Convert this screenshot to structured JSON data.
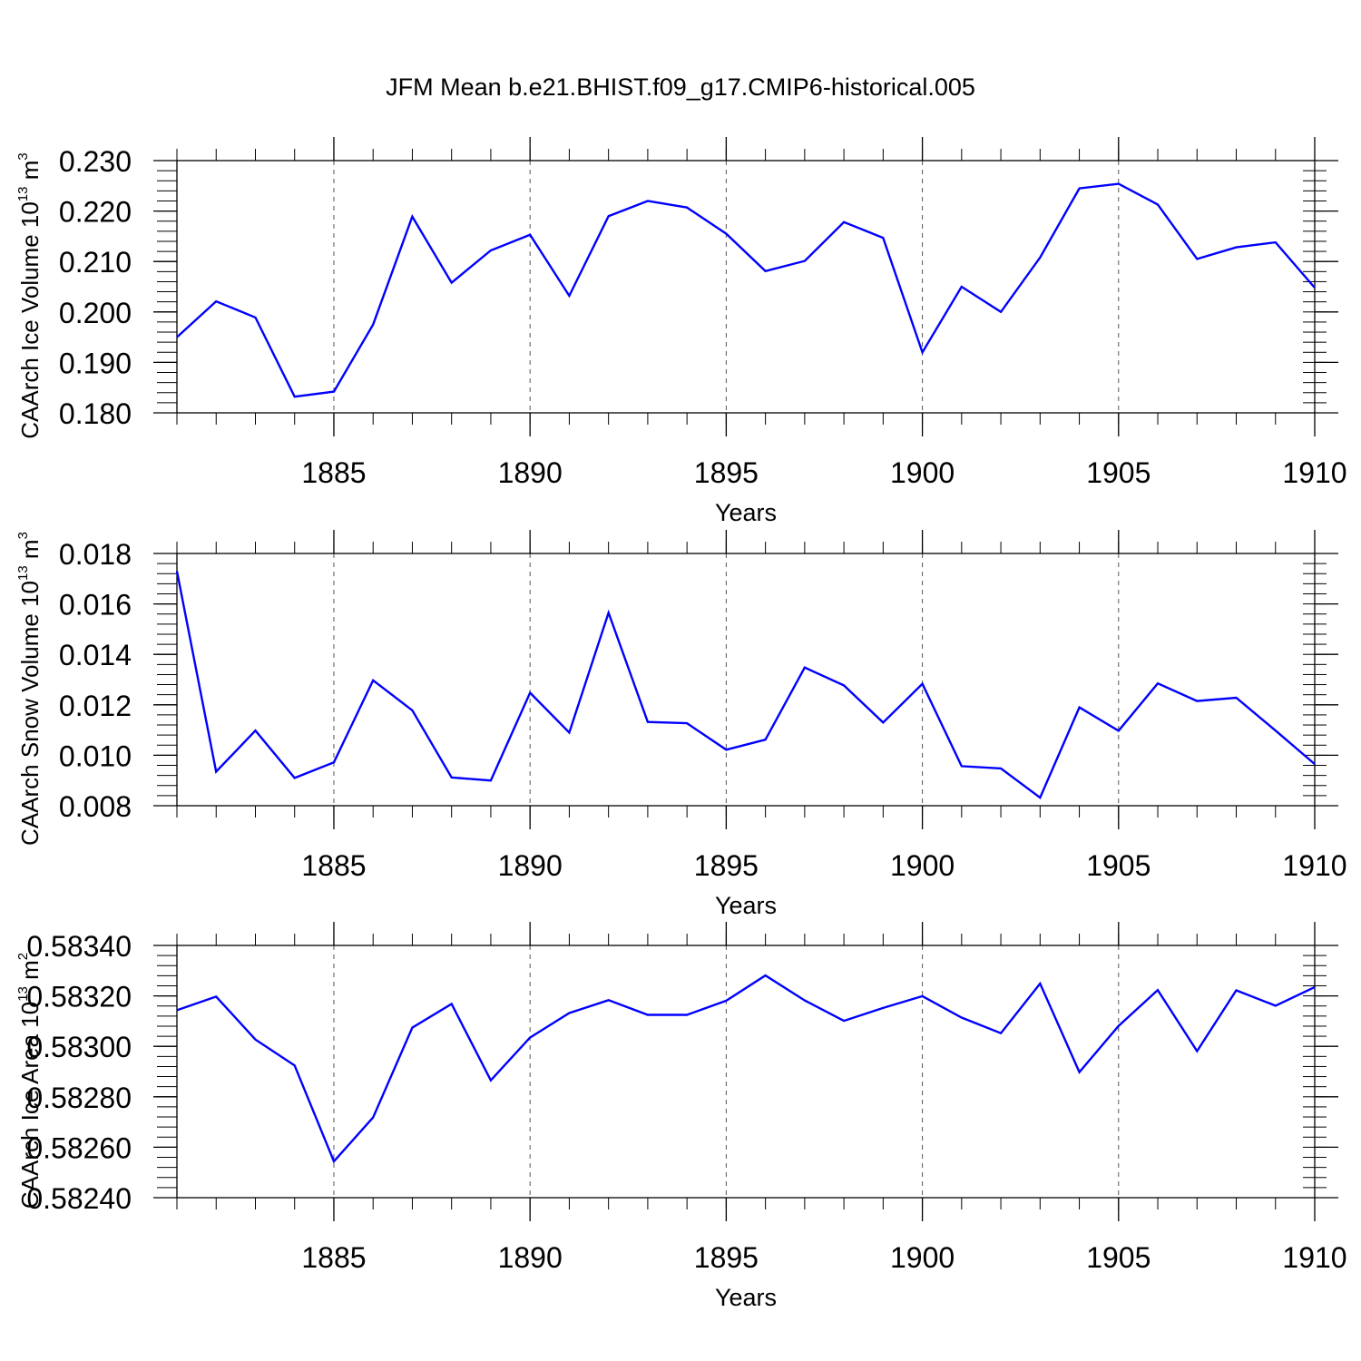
{
  "title": "JFM Mean b.e21.BHIST.f09_g17.CMIP6-historical.005",
  "colors": {
    "line": "#0000ff",
    "axis": "#000000",
    "grid": "#555555"
  },
  "chart_data": [
    {
      "type": "line",
      "ylabel": "CAArch Ice Volume",
      "ylabel_exp_base": "10",
      "ylabel_exp": "13",
      "ylabel_unit_base": "m",
      "ylabel_unit_exp": "3",
      "xlabel": "Years",
      "xlim": [
        1881,
        1910
      ],
      "ylim": [
        0.18,
        0.23
      ],
      "xticks": [
        1885,
        1890,
        1895,
        1900,
        1905,
        1910
      ],
      "yticks": [
        0.18,
        0.19,
        0.2,
        0.21,
        0.22,
        0.23
      ],
      "ytick_labels": [
        "0.180",
        "0.190",
        "0.200",
        "0.210",
        "0.220",
        "0.230"
      ],
      "grid_x": [
        1885,
        1890,
        1895,
        1900,
        1905
      ],
      "x": [
        1881,
        1882,
        1883,
        1884,
        1885,
        1886,
        1887,
        1888,
        1889,
        1890,
        1891,
        1892,
        1893,
        1894,
        1895,
        1896,
        1897,
        1898,
        1899,
        1900,
        1901,
        1902,
        1903,
        1904,
        1905,
        1906,
        1907,
        1908,
        1909,
        1910
      ],
      "values": [
        0.195,
        0.2021,
        0.1989,
        0.1832,
        0.1842,
        0.1975,
        0.2189,
        0.2058,
        0.2122,
        0.2153,
        0.2032,
        0.219,
        0.222,
        0.2207,
        0.2155,
        0.2081,
        0.2101,
        0.2178,
        0.2147,
        0.192,
        0.205,
        0.2,
        0.2108,
        0.2245,
        0.2254,
        0.2213,
        0.2105,
        0.2128,
        0.2138,
        0.2048
      ]
    },
    {
      "type": "line",
      "ylabel": "CAArch Snow Volume",
      "ylabel_exp_base": "10",
      "ylabel_exp": "13",
      "ylabel_unit_base": "m",
      "ylabel_unit_exp": "3",
      "xlabel": "Years",
      "xlim": [
        1881,
        1910
      ],
      "ylim": [
        0.008,
        0.018
      ],
      "xticks": [
        1885,
        1890,
        1895,
        1900,
        1905,
        1910
      ],
      "yticks": [
        0.008,
        0.01,
        0.012,
        0.014,
        0.016,
        0.018
      ],
      "ytick_labels": [
        "0.008",
        "0.010",
        "0.012",
        "0.014",
        "0.016",
        "0.018"
      ],
      "grid_x": [
        1885,
        1890,
        1895,
        1900,
        1905
      ],
      "x": [
        1881,
        1882,
        1883,
        1884,
        1885,
        1886,
        1887,
        1888,
        1889,
        1890,
        1891,
        1892,
        1893,
        1894,
        1895,
        1896,
        1897,
        1898,
        1899,
        1900,
        1901,
        1902,
        1903,
        1904,
        1905,
        1906,
        1907,
        1908,
        1909,
        1910
      ],
      "values": [
        0.0173,
        0.00935,
        0.01098,
        0.0091,
        0.00972,
        0.01297,
        0.01178,
        0.00912,
        0.009,
        0.01248,
        0.0109,
        0.01565,
        0.01132,
        0.01127,
        0.01022,
        0.01062,
        0.01348,
        0.01277,
        0.0113,
        0.01283,
        0.00957,
        0.00948,
        0.00832,
        0.0119,
        0.01097,
        0.01285,
        0.01215,
        0.01228,
        0.01098,
        0.00965
      ]
    },
    {
      "type": "line",
      "ylabel": "CAArch Ice Area",
      "ylabel_exp_base": "10",
      "ylabel_exp": "13",
      "ylabel_unit_base": "m",
      "ylabel_unit_exp": "2",
      "xlabel": "Years",
      "xlim": [
        1881,
        1910
      ],
      "ylim": [
        0.5824,
        0.5834
      ],
      "xticks": [
        1885,
        1890,
        1895,
        1900,
        1905,
        1910
      ],
      "yticks": [
        0.5824,
        0.5826,
        0.5828,
        0.583,
        0.5832,
        0.5834
      ],
      "ytick_labels": [
        "0.58240",
        "0.58260",
        "0.58280",
        "0.58300",
        "0.58320",
        "0.58340"
      ],
      "grid_x": [
        1885,
        1890,
        1895,
        1900,
        1905
      ],
      "x": [
        1881,
        1882,
        1883,
        1884,
        1885,
        1886,
        1887,
        1888,
        1889,
        1890,
        1891,
        1892,
        1893,
        1894,
        1895,
        1896,
        1897,
        1898,
        1899,
        1900,
        1901,
        1902,
        1903,
        1904,
        1905,
        1906,
        1907,
        1908,
        1909,
        1910
      ],
      "values": [
        0.583143,
        0.583197,
        0.583027,
        0.582924,
        0.582544,
        0.582718,
        0.583074,
        0.583168,
        0.582865,
        0.583035,
        0.583132,
        0.583183,
        0.583125,
        0.583125,
        0.583181,
        0.583281,
        0.583182,
        0.583101,
        0.583152,
        0.583199,
        0.583114,
        0.583052,
        0.583249,
        0.582898,
        0.583081,
        0.583223,
        0.582981,
        0.583222,
        0.583161,
        0.583235
      ]
    }
  ]
}
